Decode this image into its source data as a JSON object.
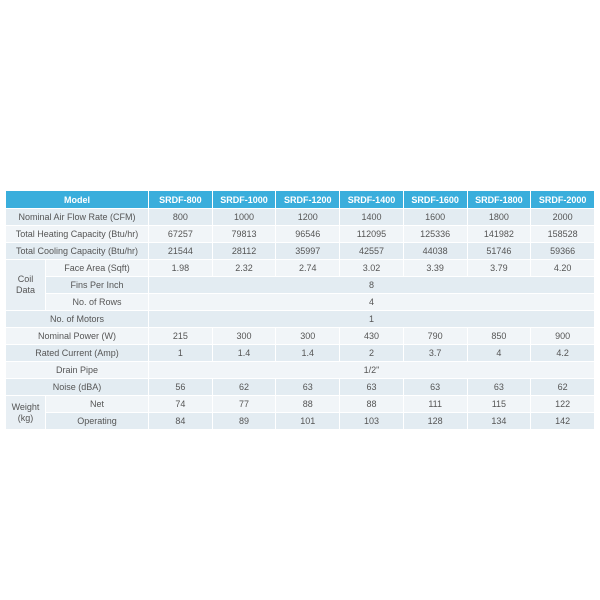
{
  "table": {
    "header": [
      "Model",
      "SRDF-800",
      "SRDF-1000",
      "SRDF-1200",
      "SRDF-1400",
      "SRDF-1600",
      "SRDF-1800",
      "SRDF-2000"
    ],
    "rows": [
      {
        "label": "Nominal Air Flow Rate (CFM)",
        "values": [
          "800",
          "1000",
          "1200",
          "1400",
          "1600",
          "1800",
          "2000"
        ]
      },
      {
        "label": "Total Heating Capacity (Btu/hr)",
        "values": [
          "67257",
          "79813",
          "96546",
          "112095",
          "125336",
          "141982",
          "158528"
        ]
      },
      {
        "label": "Total Cooling Capacity (Btu/hr)",
        "values": [
          "21544",
          "28112",
          "35997",
          "42557",
          "44038",
          "51746",
          "59366"
        ]
      },
      {
        "group": "Coil Data",
        "rows": [
          {
            "label": "Face Area (Sqft)",
            "values": [
              "1.98",
              "2.32",
              "2.74",
              "3.02",
              "3.39",
              "3.79",
              "4.20"
            ]
          },
          {
            "label": "Fins Per Inch",
            "values": [
              "8"
            ]
          },
          {
            "label": "No. of Rows",
            "values": [
              "4"
            ]
          }
        ]
      },
      {
        "label": "No. of Motors",
        "values": [
          "1"
        ]
      },
      {
        "label": "Nominal Power (W)",
        "values": [
          "215",
          "300",
          "300",
          "430",
          "790",
          "850",
          "900"
        ]
      },
      {
        "label": "Rated Current (Amp)",
        "values": [
          "1",
          "1.4",
          "1.4",
          "2",
          "3.7",
          "4",
          "4.2"
        ]
      },
      {
        "label": "Drain Pipe",
        "values": [
          "1/2\""
        ]
      },
      {
        "label": "Noise (dBA)",
        "values": [
          "56",
          "62",
          "63",
          "63",
          "63",
          "63",
          "62"
        ]
      },
      {
        "group": "Weight (kg)",
        "rows": [
          {
            "label": "Net",
            "values": [
              "74",
              "77",
              "88",
              "88",
              "111",
              "115",
              "122"
            ]
          },
          {
            "label": "Operating",
            "values": [
              "84",
              "89",
              "101",
              "103",
              "128",
              "134",
              "142"
            ]
          }
        ]
      }
    ]
  }
}
